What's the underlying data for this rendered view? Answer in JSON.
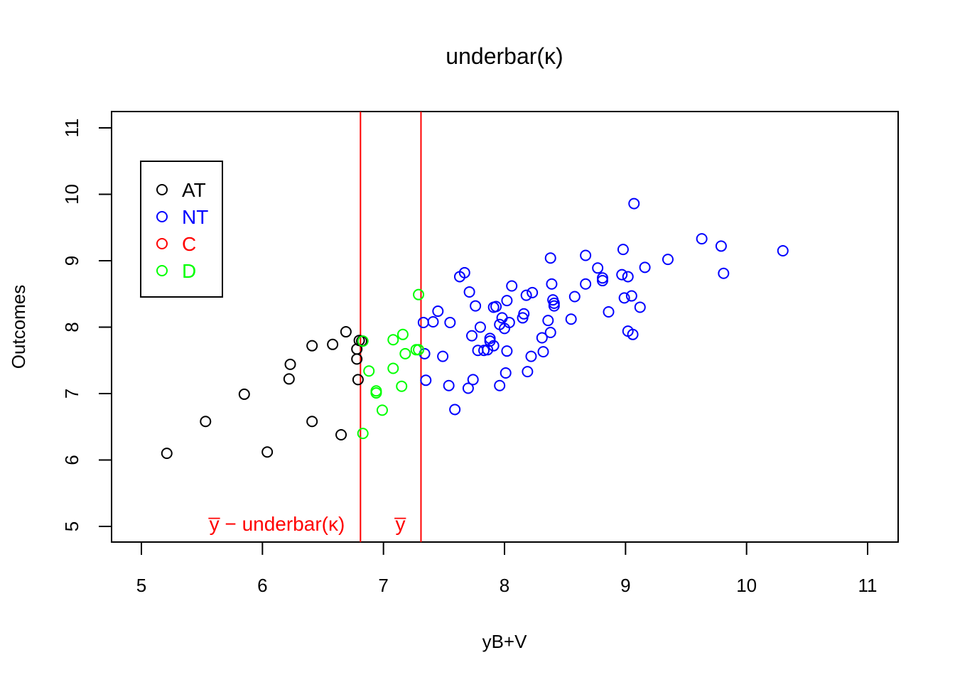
{
  "chart_data": {
    "type": "scatter",
    "title": "underbar(κ)",
    "xlabel": "yB+V",
    "ylabel": "Outcomes",
    "xlim": [
      5,
      11
    ],
    "ylim": [
      5,
      11
    ],
    "x_ticks": [
      "5",
      "6",
      "7",
      "8",
      "9",
      "10",
      "11"
    ],
    "y_ticks": [
      "5",
      "6",
      "7",
      "8",
      "9",
      "10",
      "11"
    ],
    "grid": false,
    "legend_position": "top-left",
    "vertical_lines": [
      {
        "x": 6.81,
        "label": "y̅ − underbar(κ)",
        "color": "#ff0000"
      },
      {
        "x": 7.31,
        "label": "y̅",
        "color": "#ff0000"
      }
    ],
    "series": [
      {
        "name": "AT",
        "color": "#000000",
        "points": [
          [
            5.21,
            6.1
          ],
          [
            5.53,
            6.58
          ],
          [
            5.85,
            6.99
          ],
          [
            6.04,
            6.12
          ],
          [
            6.22,
            7.22
          ],
          [
            6.23,
            7.44
          ],
          [
            6.41,
            6.58
          ],
          [
            6.41,
            7.72
          ],
          [
            6.58,
            7.74
          ],
          [
            6.65,
            6.38
          ],
          [
            6.69,
            7.93
          ],
          [
            6.78,
            7.67
          ],
          [
            6.78,
            7.52
          ],
          [
            6.79,
            7.21
          ],
          [
            6.8,
            7.8
          ],
          [
            6.82,
            7.79
          ]
        ]
      },
      {
        "name": "NT",
        "color": "#0000ff",
        "points": [
          [
            7.33,
            8.07
          ],
          [
            7.34,
            7.6
          ],
          [
            7.35,
            7.2
          ],
          [
            7.41,
            8.08
          ],
          [
            7.45,
            8.24
          ],
          [
            7.49,
            7.56
          ],
          [
            7.54,
            7.12
          ],
          [
            7.55,
            8.07
          ],
          [
            7.59,
            6.76
          ],
          [
            7.63,
            8.76
          ],
          [
            7.67,
            8.82
          ],
          [
            7.7,
            7.08
          ],
          [
            7.71,
            8.53
          ],
          [
            7.73,
            7.87
          ],
          [
            7.74,
            7.21
          ],
          [
            7.76,
            8.32
          ],
          [
            7.78,
            7.65
          ],
          [
            7.8,
            8.0
          ],
          [
            7.83,
            7.65
          ],
          [
            7.86,
            7.66
          ],
          [
            7.88,
            7.83
          ],
          [
            7.88,
            7.79
          ],
          [
            7.91,
            8.3
          ],
          [
            7.91,
            7.72
          ],
          [
            7.93,
            8.31
          ],
          [
            7.96,
            7.12
          ],
          [
            7.96,
            8.04
          ],
          [
            7.98,
            8.14
          ],
          [
            8.0,
            7.98
          ],
          [
            8.01,
            7.31
          ],
          [
            8.02,
            8.4
          ],
          [
            8.02,
            7.64
          ],
          [
            8.04,
            8.07
          ],
          [
            8.06,
            8.62
          ],
          [
            8.15,
            8.14
          ],
          [
            8.16,
            8.2
          ],
          [
            8.18,
            8.48
          ],
          [
            8.19,
            7.33
          ],
          [
            8.22,
            7.56
          ],
          [
            8.23,
            8.52
          ],
          [
            8.31,
            7.84
          ],
          [
            8.32,
            7.63
          ],
          [
            8.36,
            8.1
          ],
          [
            8.38,
            7.92
          ],
          [
            8.38,
            9.04
          ],
          [
            8.39,
            8.65
          ],
          [
            8.4,
            8.41
          ],
          [
            8.41,
            8.36
          ],
          [
            8.41,
            8.32
          ],
          [
            8.55,
            8.12
          ],
          [
            8.58,
            8.46
          ],
          [
            8.67,
            9.08
          ],
          [
            8.67,
            8.65
          ],
          [
            8.77,
            8.89
          ],
          [
            8.81,
            8.74
          ],
          [
            8.81,
            8.7
          ],
          [
            8.86,
            8.23
          ],
          [
            8.97,
            8.79
          ],
          [
            8.98,
            9.17
          ],
          [
            8.99,
            8.44
          ],
          [
            9.02,
            8.76
          ],
          [
            9.02,
            7.94
          ],
          [
            9.05,
            8.47
          ],
          [
            9.06,
            7.89
          ],
          [
            9.07,
            9.86
          ],
          [
            9.12,
            8.3
          ],
          [
            9.16,
            8.9
          ],
          [
            9.35,
            9.02
          ],
          [
            9.63,
            9.33
          ],
          [
            9.79,
            9.22
          ],
          [
            9.81,
            8.81
          ],
          [
            10.3,
            9.15
          ]
        ]
      },
      {
        "name": "C",
        "color": "#ff0000",
        "points": []
      },
      {
        "name": "D",
        "color": "#00ff00",
        "points": [
          [
            6.83,
            7.79
          ],
          [
            6.83,
            6.4
          ],
          [
            6.88,
            7.34
          ],
          [
            6.94,
            7.01
          ],
          [
            6.94,
            7.04
          ],
          [
            6.99,
            6.75
          ],
          [
            7.08,
            7.38
          ],
          [
            7.08,
            7.81
          ],
          [
            7.15,
            7.11
          ],
          [
            7.16,
            7.89
          ],
          [
            7.18,
            7.6
          ],
          [
            7.27,
            7.66
          ],
          [
            7.29,
            7.66
          ],
          [
            7.29,
            8.49
          ]
        ]
      }
    ]
  }
}
